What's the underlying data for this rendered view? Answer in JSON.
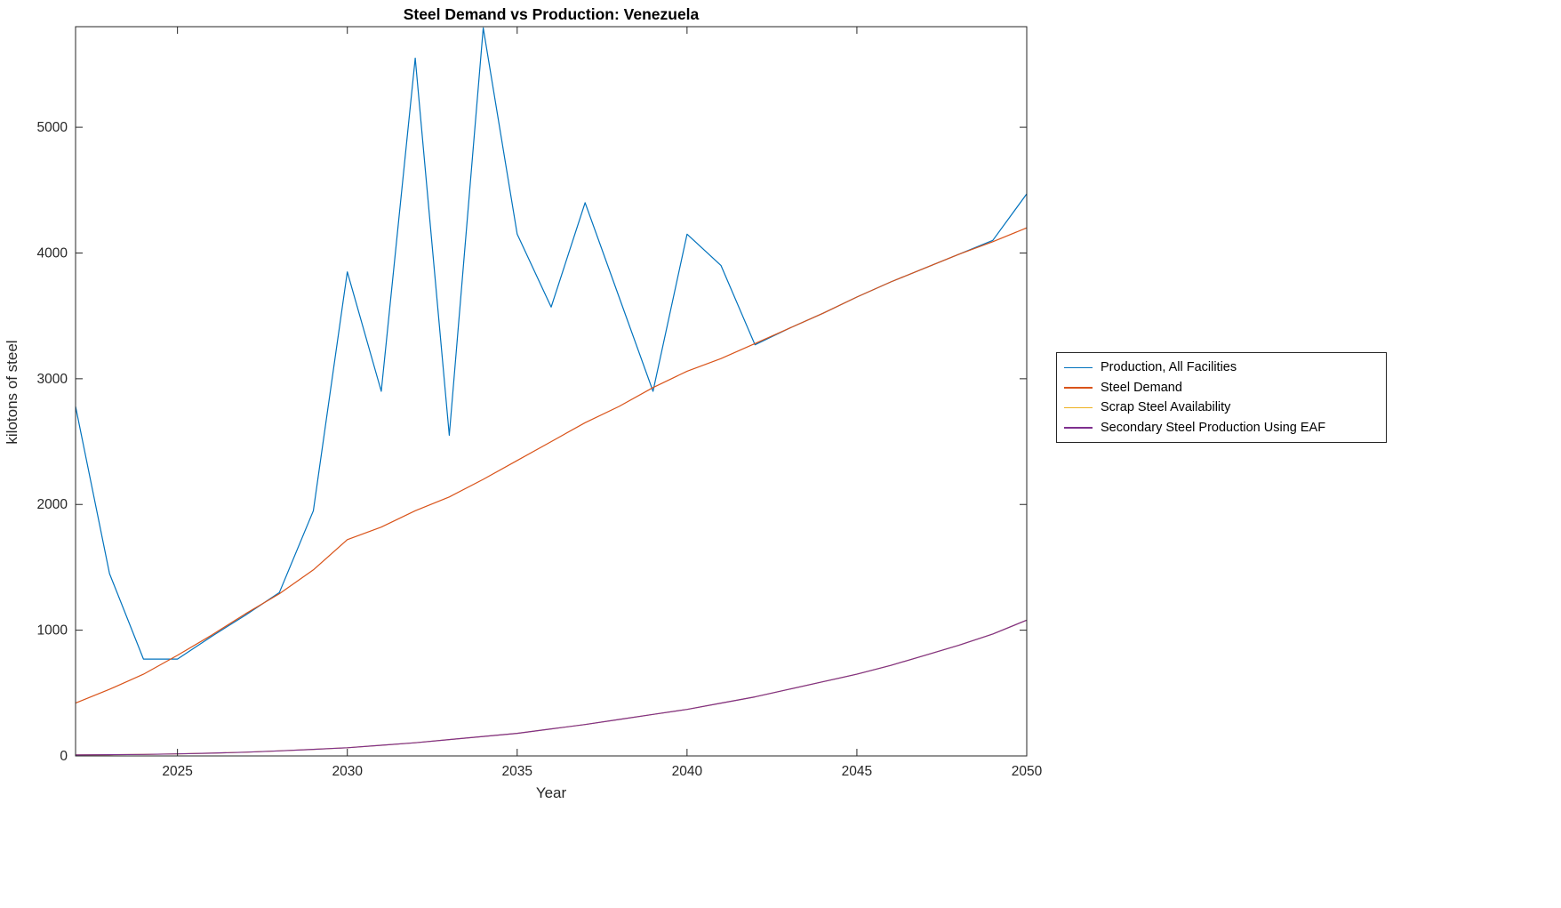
{
  "figure": {
    "title": "Steel Demand vs Production: Venezuela",
    "xlabel": "Year",
    "ylabel": "kilotons of steel"
  },
  "legend": {
    "items": [
      {
        "label": "Production, All Facilities",
        "color": "#0072BD"
      },
      {
        "label": "Steel Demand",
        "color": "#D95319"
      },
      {
        "label": "Scrap Steel Availability",
        "color": "#EDB120"
      },
      {
        "label": "Secondary Steel Production Using EAF",
        "color": "#7E2F8E"
      }
    ]
  },
  "chart_data": {
    "type": "line",
    "title": "Steel Demand vs Production: Venezuela",
    "xlabel": "Year",
    "ylabel": "kilotons of steel",
    "xlim": [
      2022,
      2050
    ],
    "ylim": [
      0,
      5800
    ],
    "xticks": [
      2025,
      2030,
      2035,
      2040,
      2045,
      2050
    ],
    "yticks": [
      0,
      1000,
      2000,
      3000,
      4000,
      5000
    ],
    "grid": false,
    "legend_position": "right-outside",
    "x": [
      2022,
      2023,
      2024,
      2025,
      2026,
      2027,
      2028,
      2029,
      2030,
      2031,
      2032,
      2033,
      2034,
      2035,
      2036,
      2037,
      2038,
      2039,
      2040,
      2041,
      2042,
      2043,
      2044,
      2045,
      2046,
      2047,
      2048,
      2049,
      2050
    ],
    "series": [
      {
        "name": "Production, All Facilities",
        "color": "#0072BD",
        "values": [
          2780,
          1450,
          770,
          770,
          950,
          1120,
          1300,
          1950,
          3850,
          2900,
          5550,
          2550,
          5790,
          4150,
          3570,
          4400,
          3650,
          2900,
          4150,
          3900,
          3270,
          3400,
          3520,
          3650,
          3770,
          3880,
          3990,
          4100,
          4470
        ]
      },
      {
        "name": "Steel Demand",
        "color": "#D95319",
        "values": [
          420,
          530,
          650,
          800,
          960,
          1130,
          1290,
          1480,
          1720,
          1820,
          1950,
          2060,
          2200,
          2350,
          2500,
          2650,
          2780,
          2930,
          3060,
          3160,
          3280,
          3400,
          3520,
          3650,
          3770,
          3880,
          3990,
          4090,
          4200
        ]
      },
      {
        "name": "Scrap Steel Availability",
        "color": "#EDB120",
        "values": [
          8,
          10,
          12,
          16,
          22,
          30,
          40,
          52,
          65,
          85,
          105,
          130,
          155,
          180,
          215,
          250,
          290,
          330,
          370,
          420,
          470,
          530,
          590,
          650,
          720,
          800,
          880,
          970,
          1080
        ]
      },
      {
        "name": "Secondary Steel Production Using EAF",
        "color": "#7E2F8E",
        "values": [
          8,
          10,
          12,
          16,
          22,
          30,
          40,
          52,
          65,
          85,
          105,
          130,
          155,
          180,
          215,
          250,
          290,
          330,
          370,
          420,
          470,
          530,
          590,
          650,
          720,
          800,
          880,
          970,
          1080
        ]
      }
    ]
  }
}
